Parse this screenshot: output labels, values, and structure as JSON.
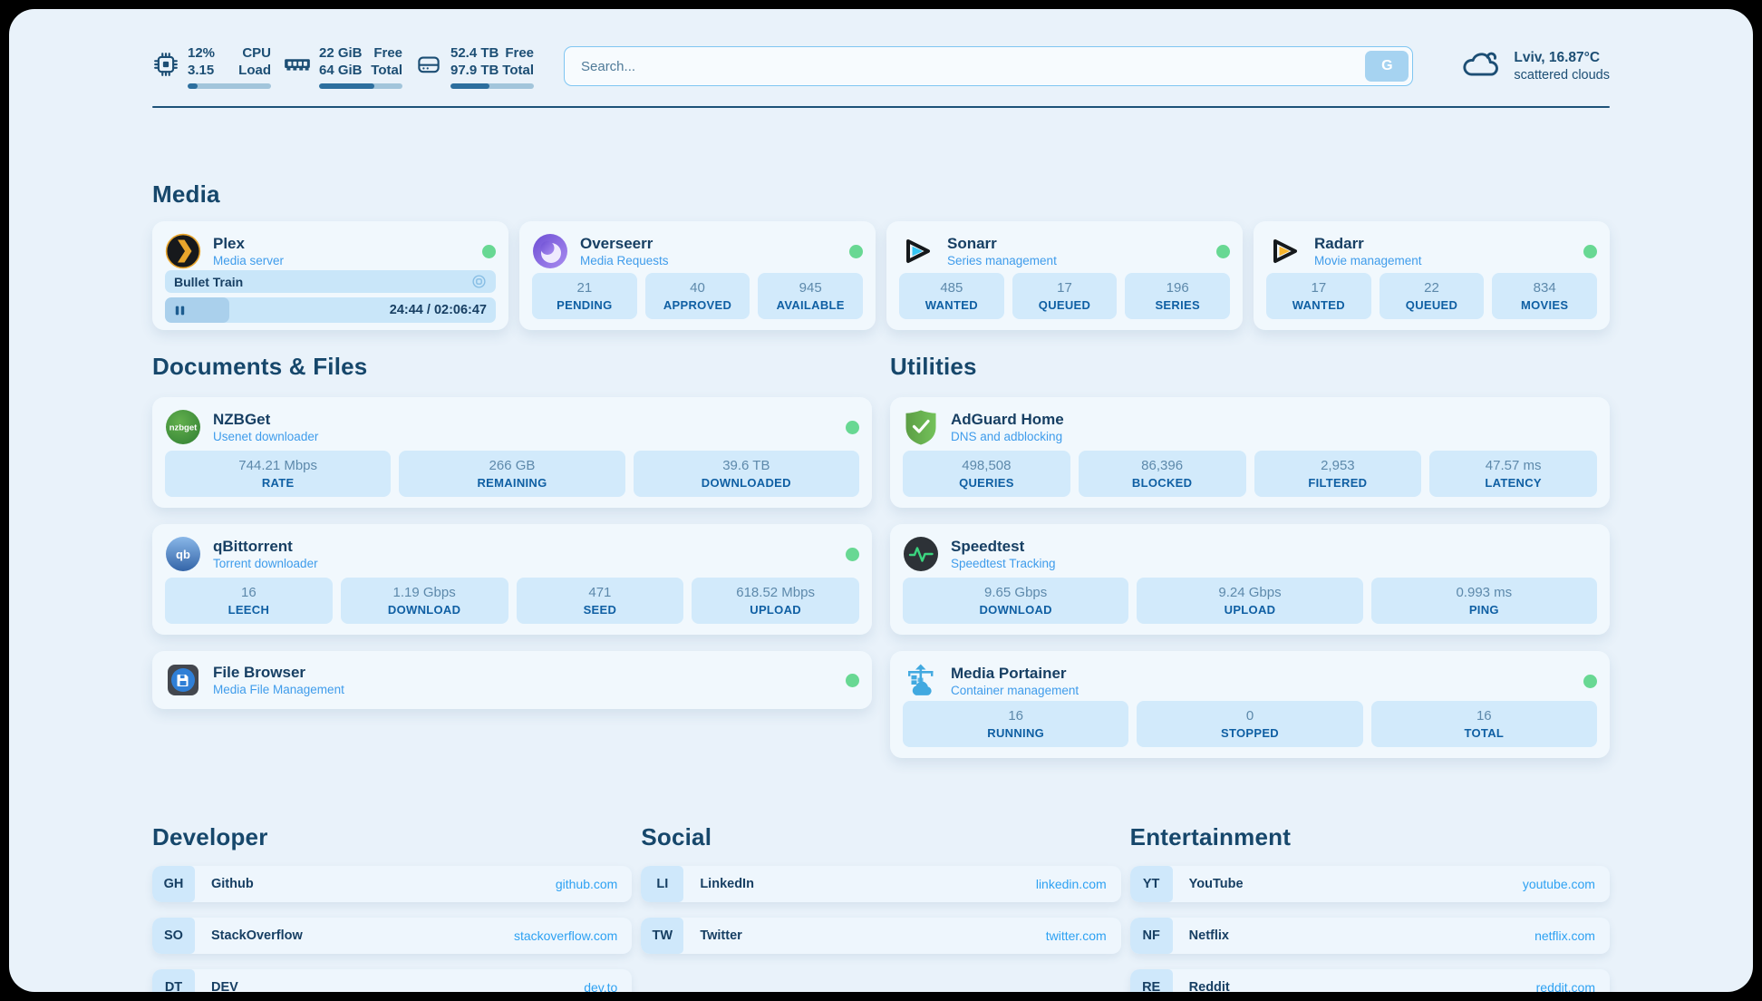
{
  "header": {
    "system_stats": [
      {
        "icon": "cpu",
        "value_top": "12%",
        "value_bottom": "3.15",
        "label_top": "CPU",
        "label_bottom": "Load",
        "used_percent": 12
      },
      {
        "icon": "memory",
        "value_top": "22 GiB",
        "value_bottom": "64 GiB",
        "label_top": "Free",
        "label_bottom": "Total",
        "used_percent": 66
      },
      {
        "icon": "disk",
        "value_top": "52.4 TB",
        "value_bottom": "97.9 TB",
        "label_top": "Free",
        "label_bottom": "Total",
        "used_percent": 47
      }
    ],
    "search": {
      "placeholder": "Search...",
      "provider_button": "G"
    },
    "weather": {
      "location_temp": "Lviv, 16.87°C",
      "condition": "scattered clouds"
    }
  },
  "media": {
    "section_title": "Media",
    "plex": {
      "name": "Plex",
      "description": "Media server",
      "now_playing": {
        "title": "Bullet Train",
        "elapsed_total": "24:44 / 02:06:47",
        "progress_percent": 19.5
      }
    },
    "overseerr": {
      "name": "Overseerr",
      "description": "Media Requests",
      "stats": [
        {
          "value": "21",
          "label": "PENDING"
        },
        {
          "value": "40",
          "label": "APPROVED"
        },
        {
          "value": "945",
          "label": "AVAILABLE"
        }
      ]
    },
    "sonarr": {
      "name": "Sonarr",
      "description": "Series management",
      "stats": [
        {
          "value": "485",
          "label": "WANTED"
        },
        {
          "value": "17",
          "label": "QUEUED"
        },
        {
          "value": "196",
          "label": "SERIES"
        }
      ]
    },
    "radarr": {
      "name": "Radarr",
      "description": "Movie management",
      "stats": [
        {
          "value": "17",
          "label": "WANTED"
        },
        {
          "value": "22",
          "label": "QUEUED"
        },
        {
          "value": "834",
          "label": "MOVIES"
        }
      ]
    }
  },
  "documents": {
    "section_title": "Documents & Files",
    "nzbget": {
      "name": "NZBGet",
      "description": "Usenet downloader",
      "stats": [
        {
          "value": "744.21 Mbps",
          "label": "RATE"
        },
        {
          "value": "266 GB",
          "label": "REMAINING"
        },
        {
          "value": "39.6 TB",
          "label": "DOWNLOADED"
        }
      ]
    },
    "qbittorrent": {
      "name": "qBittorrent",
      "description": "Torrent downloader",
      "stats": [
        {
          "value": "16",
          "label": "LEECH"
        },
        {
          "value": "1.19 Gbps",
          "label": "DOWNLOAD"
        },
        {
          "value": "471",
          "label": "SEED"
        },
        {
          "value": "618.52 Mbps",
          "label": "UPLOAD"
        }
      ]
    },
    "filebrowser": {
      "name": "File Browser",
      "description": "Media File Management"
    }
  },
  "utilities": {
    "section_title": "Utilities",
    "adguard": {
      "name": "AdGuard Home",
      "description": "DNS and adblocking",
      "stats": [
        {
          "value": "498,508",
          "label": "QUERIES"
        },
        {
          "value": "86,396",
          "label": "BLOCKED"
        },
        {
          "value": "2,953",
          "label": "FILTERED"
        },
        {
          "value": "47.57 ms",
          "label": "LATENCY"
        }
      ]
    },
    "speedtest": {
      "name": "Speedtest",
      "description": "Speedtest Tracking",
      "stats": [
        {
          "value": "9.65 Gbps",
          "label": "DOWNLOAD"
        },
        {
          "value": "9.24 Gbps",
          "label": "UPLOAD"
        },
        {
          "value": "0.993 ms",
          "label": "PING"
        }
      ]
    },
    "portainer": {
      "name": "Media Portainer",
      "description": "Container management",
      "stats": [
        {
          "value": "16",
          "label": "RUNNING"
        },
        {
          "value": "0",
          "label": "STOPPED"
        },
        {
          "value": "16",
          "label": "TOTAL"
        }
      ]
    }
  },
  "bookmarks": [
    {
      "section_title": "Developer",
      "links": [
        {
          "abbr": "GH",
          "name": "Github",
          "url": "github.com"
        },
        {
          "abbr": "SO",
          "name": "StackOverflow",
          "url": "stackoverflow.com"
        },
        {
          "abbr": "DT",
          "name": "DEV",
          "url": "dev.to"
        }
      ]
    },
    {
      "section_title": "Social",
      "links": [
        {
          "abbr": "LI",
          "name": "LinkedIn",
          "url": "linkedin.com"
        },
        {
          "abbr": "TW",
          "name": "Twitter",
          "url": "twitter.com"
        }
      ]
    },
    {
      "section_title": "Entertainment",
      "links": [
        {
          "abbr": "YT",
          "name": "YouTube",
          "url": "youtube.com"
        },
        {
          "abbr": "NF",
          "name": "Netflix",
          "url": "netflix.com"
        },
        {
          "abbr": "RE",
          "name": "Reddit",
          "url": "reddit.com"
        }
      ]
    }
  ],
  "icon_text": {
    "nzbget": "nzbget",
    "qbittorrent": "qb"
  },
  "colors": {
    "accent_blue": "#2da1f2",
    "status_online": "#68d893",
    "navy": "#173f63"
  }
}
